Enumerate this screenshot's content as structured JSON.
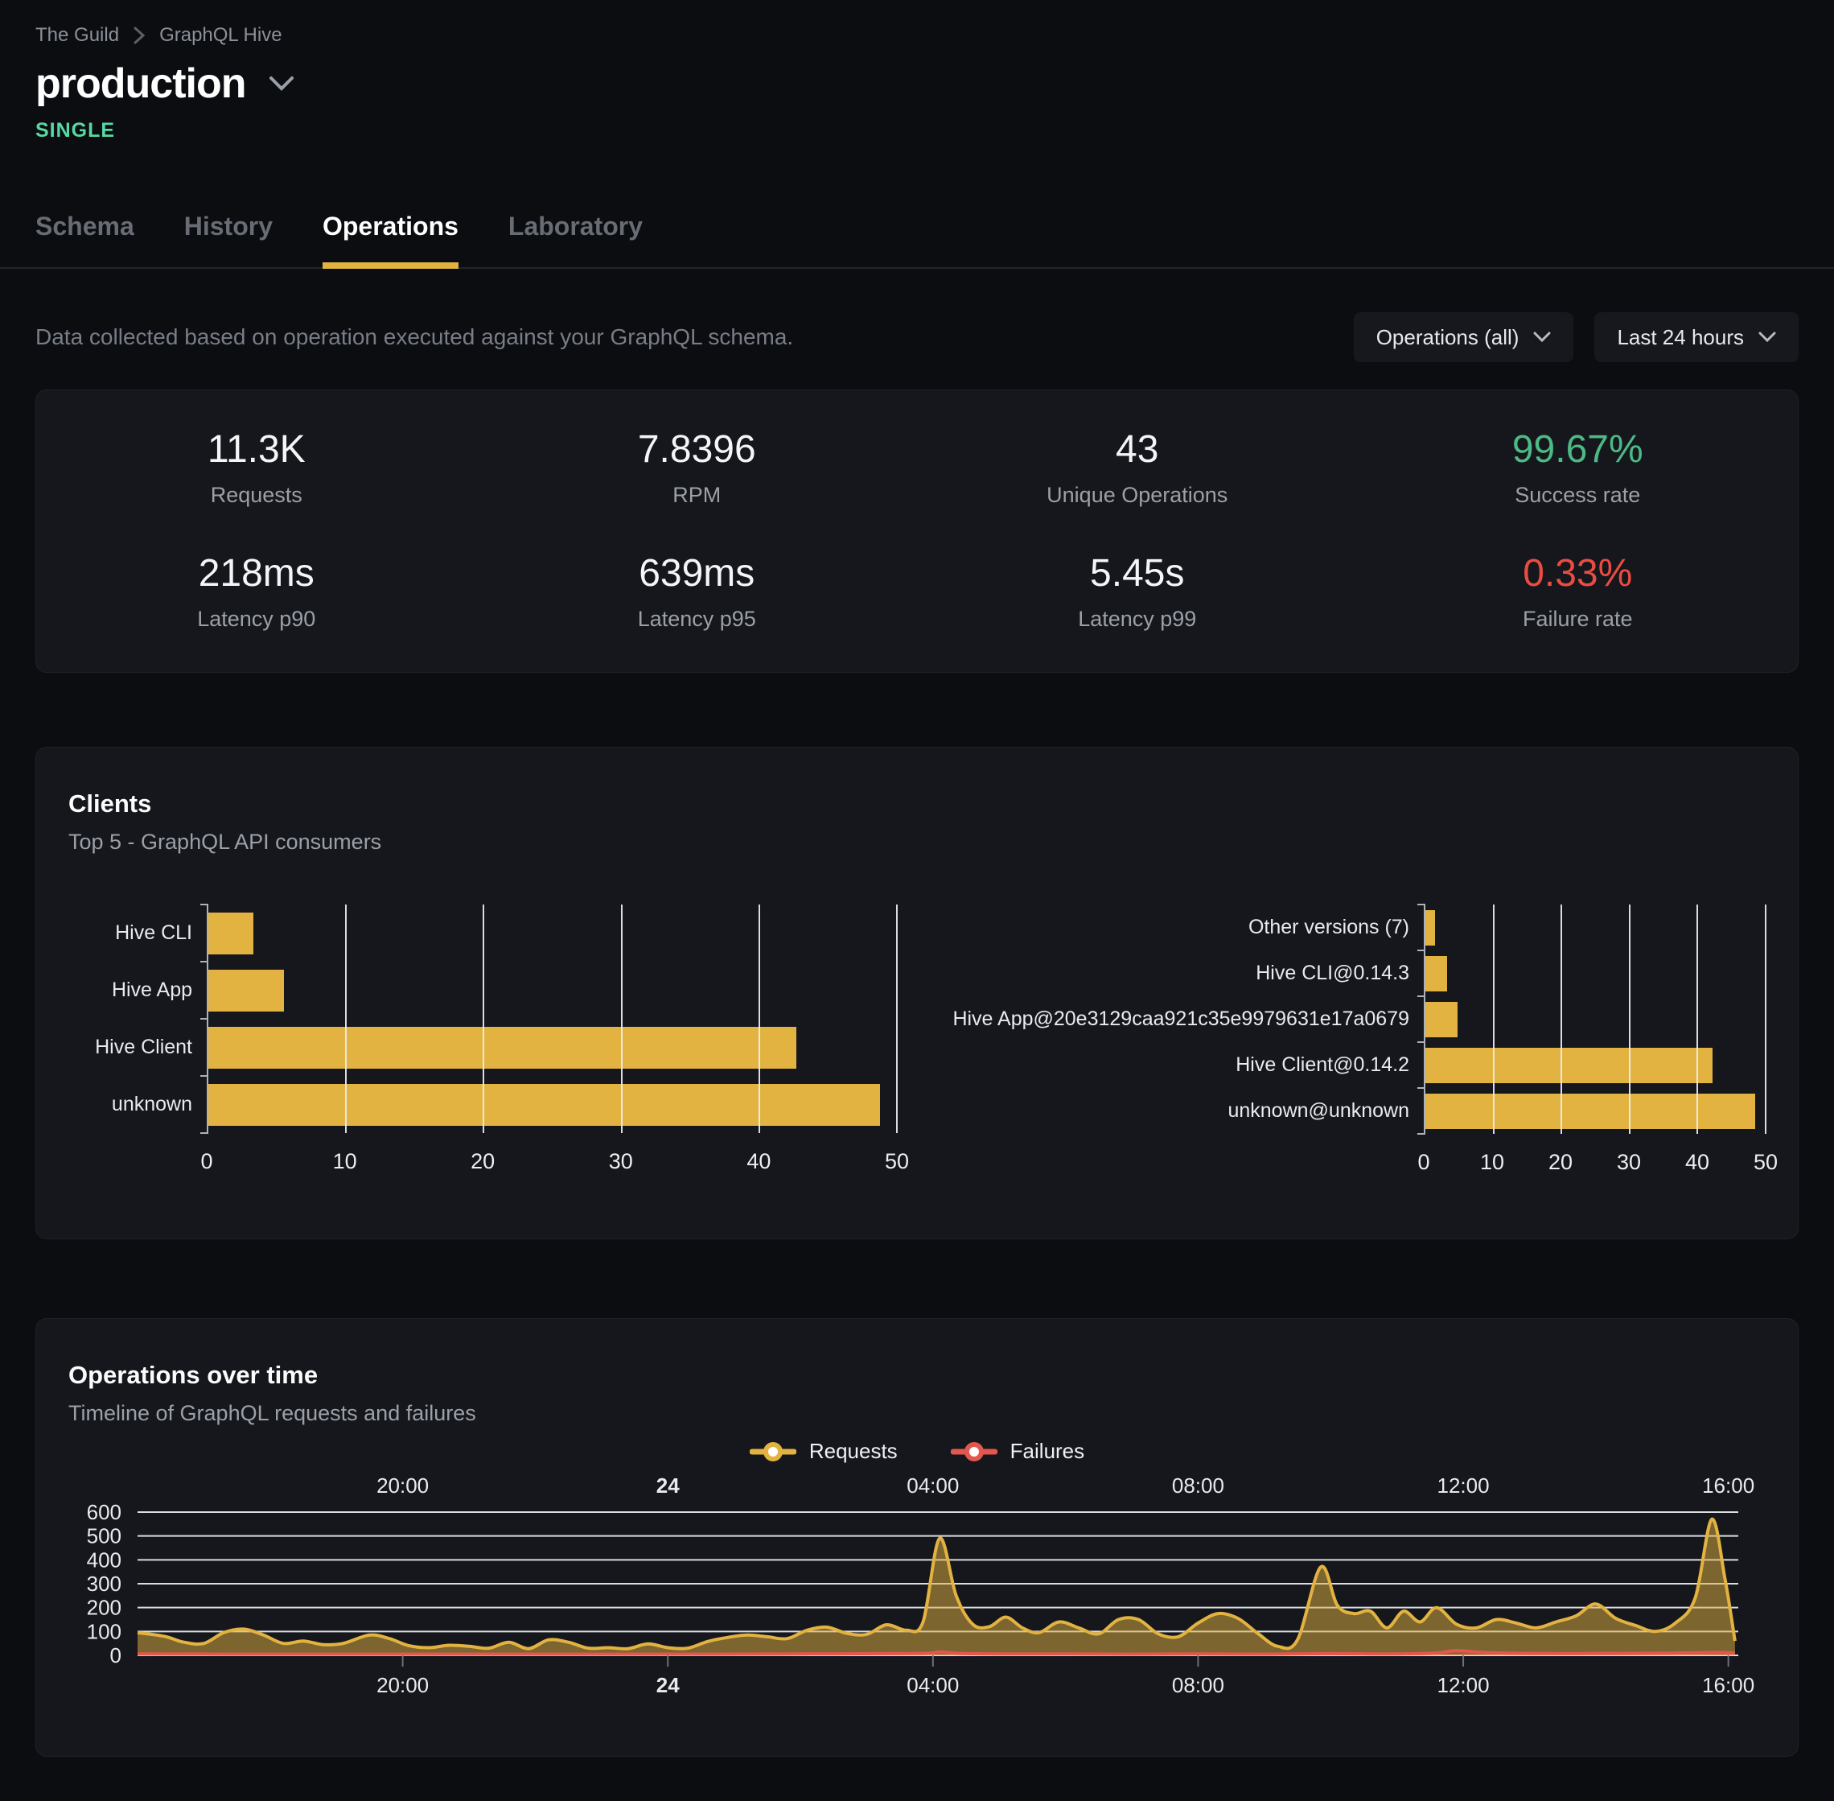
{
  "breadcrumb": {
    "items": [
      "The Guild",
      "GraphQL Hive"
    ]
  },
  "header": {
    "title": "production",
    "badge": "SINGLE"
  },
  "tabs": [
    {
      "label": "Schema",
      "active": false
    },
    {
      "label": "History",
      "active": false
    },
    {
      "label": "Operations",
      "active": true
    },
    {
      "label": "Laboratory",
      "active": false
    }
  ],
  "toolbar": {
    "description": "Data collected based on operation executed against your GraphQL schema.",
    "operations_filter": "Operations (all)",
    "time_filter": "Last 24 hours"
  },
  "stats": {
    "items": [
      {
        "value": "11.3K",
        "label": "Requests"
      },
      {
        "value": "7.8396",
        "label": "RPM"
      },
      {
        "value": "43",
        "label": "Unique Operations"
      },
      {
        "value": "99.67%",
        "label": "Success rate",
        "color": "#4dba85"
      },
      {
        "value": "218ms",
        "label": "Latency p90"
      },
      {
        "value": "639ms",
        "label": "Latency p95"
      },
      {
        "value": "5.45s",
        "label": "Latency p99"
      },
      {
        "value": "0.33%",
        "label": "Failure rate",
        "color": "#ea4c41"
      }
    ]
  },
  "clients": {
    "title": "Clients",
    "subtitle": "Top 5 - GraphQL API consumers"
  },
  "timeline": {
    "title": "Operations over time",
    "subtitle": "Timeline of GraphQL requests and failures",
    "legend": [
      {
        "label": "Requests",
        "color": "#e3b341"
      },
      {
        "label": "Failures",
        "color": "#e2574e"
      }
    ]
  },
  "chart_data": [
    {
      "type": "bar",
      "orientation": "horizontal",
      "title": "Clients by name",
      "categories": [
        "Hive CLI",
        "Hive App",
        "Hive Client",
        "unknown"
      ],
      "values": [
        3.3,
        5.5,
        42.7,
        48.8
      ],
      "xlim": [
        0,
        50
      ],
      "xticks": [
        0,
        10,
        20,
        30,
        40,
        50
      ],
      "bar_color": "#e3b341",
      "grid": true
    },
    {
      "type": "bar",
      "orientation": "horizontal",
      "title": "Clients by version",
      "categories": [
        "Other versions (7)",
        "Hive CLI@0.14.3",
        "Hive App@20e3129caa921c35e9979631e17a0679",
        "Hive Client@0.14.2",
        "unknown@unknown"
      ],
      "values": [
        1.4,
        3.2,
        4.7,
        42.2,
        48.5
      ],
      "xlim": [
        0,
        50
      ],
      "xticks": [
        0,
        10,
        20,
        30,
        40,
        50
      ],
      "bar_color": "#e3b341",
      "grid": true
    },
    {
      "type": "area",
      "title": "Operations over time",
      "xlim": [
        0,
        24.15
      ],
      "ylim": [
        0,
        600
      ],
      "yticks": [
        0,
        100,
        200,
        300,
        400,
        500,
        600
      ],
      "xticks": [
        {
          "t": 4,
          "label": "20:00",
          "bold": false
        },
        {
          "t": 8,
          "label": "24",
          "bold": true
        },
        {
          "t": 12,
          "label": "04:00",
          "bold": false
        },
        {
          "t": 16,
          "label": "08:00",
          "bold": false
        },
        {
          "t": 20,
          "label": "12:00",
          "bold": false
        },
        {
          "t": 24,
          "label": "16:00",
          "bold": false
        }
      ],
      "legend_position": "top",
      "grid": true,
      "series": [
        {
          "name": "Requests",
          "color": "#e3b341",
          "fill_opacity": 0.5,
          "points": [
            [
              0,
              95
            ],
            [
              0.4,
              80
            ],
            [
              0.7,
              55
            ],
            [
              1.0,
              50
            ],
            [
              1.3,
              95
            ],
            [
              1.6,
              110
            ],
            [
              1.9,
              85
            ],
            [
              2.2,
              50
            ],
            [
              2.5,
              60
            ],
            [
              2.8,
              45
            ],
            [
              3.1,
              50
            ],
            [
              3.5,
              85
            ],
            [
              3.8,
              70
            ],
            [
              4.1,
              40
            ],
            [
              4.4,
              32
            ],
            [
              4.7,
              42
            ],
            [
              5.0,
              38
            ],
            [
              5.3,
              30
            ],
            [
              5.6,
              55
            ],
            [
              5.9,
              28
            ],
            [
              6.2,
              65
            ],
            [
              6.5,
              55
            ],
            [
              6.8,
              30
            ],
            [
              7.1,
              32
            ],
            [
              7.4,
              28
            ],
            [
              7.7,
              48
            ],
            [
              8.0,
              32
            ],
            [
              8.3,
              30
            ],
            [
              8.6,
              58
            ],
            [
              8.9,
              75
            ],
            [
              9.2,
              85
            ],
            [
              9.5,
              78
            ],
            [
              9.8,
              70
            ],
            [
              10.1,
              105
            ],
            [
              10.4,
              118
            ],
            [
              10.7,
              92
            ],
            [
              11.0,
              88
            ],
            [
              11.3,
              128
            ],
            [
              11.6,
              105
            ],
            [
              11.85,
              140
            ],
            [
              12.1,
              490
            ],
            [
              12.35,
              250
            ],
            [
              12.6,
              130
            ],
            [
              12.85,
              120
            ],
            [
              13.1,
              160
            ],
            [
              13.35,
              115
            ],
            [
              13.6,
              95
            ],
            [
              13.9,
              140
            ],
            [
              14.2,
              115
            ],
            [
              14.5,
              90
            ],
            [
              14.8,
              150
            ],
            [
              15.1,
              150
            ],
            [
              15.4,
              90
            ],
            [
              15.7,
              78
            ],
            [
              16.0,
              135
            ],
            [
              16.3,
              175
            ],
            [
              16.6,
              155
            ],
            [
              16.9,
              92
            ],
            [
              17.2,
              38
            ],
            [
              17.5,
              65
            ],
            [
              17.85,
              370
            ],
            [
              18.1,
              210
            ],
            [
              18.35,
              175
            ],
            [
              18.6,
              185
            ],
            [
              18.85,
              115
            ],
            [
              19.1,
              185
            ],
            [
              19.35,
              140
            ],
            [
              19.6,
              200
            ],
            [
              19.9,
              130
            ],
            [
              20.2,
              115
            ],
            [
              20.5,
              150
            ],
            [
              20.8,
              135
            ],
            [
              21.1,
              115
            ],
            [
              21.4,
              140
            ],
            [
              21.7,
              165
            ],
            [
              22.0,
              215
            ],
            [
              22.3,
              155
            ],
            [
              22.6,
              125
            ],
            [
              22.9,
              100
            ],
            [
              23.2,
              135
            ],
            [
              23.5,
              240
            ],
            [
              23.75,
              570
            ],
            [
              23.95,
              320
            ],
            [
              24.1,
              60
            ]
          ]
        },
        {
          "name": "Failures",
          "color": "#e2574e",
          "fill_opacity": 0.35,
          "points": [
            [
              0,
              6
            ],
            [
              2,
              5
            ],
            [
              4,
              5
            ],
            [
              6,
              5
            ],
            [
              8,
              5
            ],
            [
              10,
              6
            ],
            [
              11.8,
              8
            ],
            [
              12.1,
              14
            ],
            [
              12.4,
              8
            ],
            [
              13,
              6
            ],
            [
              14,
              6
            ],
            [
              15,
              5
            ],
            [
              16,
              6
            ],
            [
              17,
              5
            ],
            [
              18,
              7
            ],
            [
              19,
              6
            ],
            [
              19.6,
              10
            ],
            [
              19.9,
              20
            ],
            [
              20.3,
              12
            ],
            [
              21,
              8
            ],
            [
              22,
              8
            ],
            [
              23,
              9
            ],
            [
              23.8,
              12
            ],
            [
              24.1,
              10
            ]
          ]
        }
      ]
    }
  ]
}
